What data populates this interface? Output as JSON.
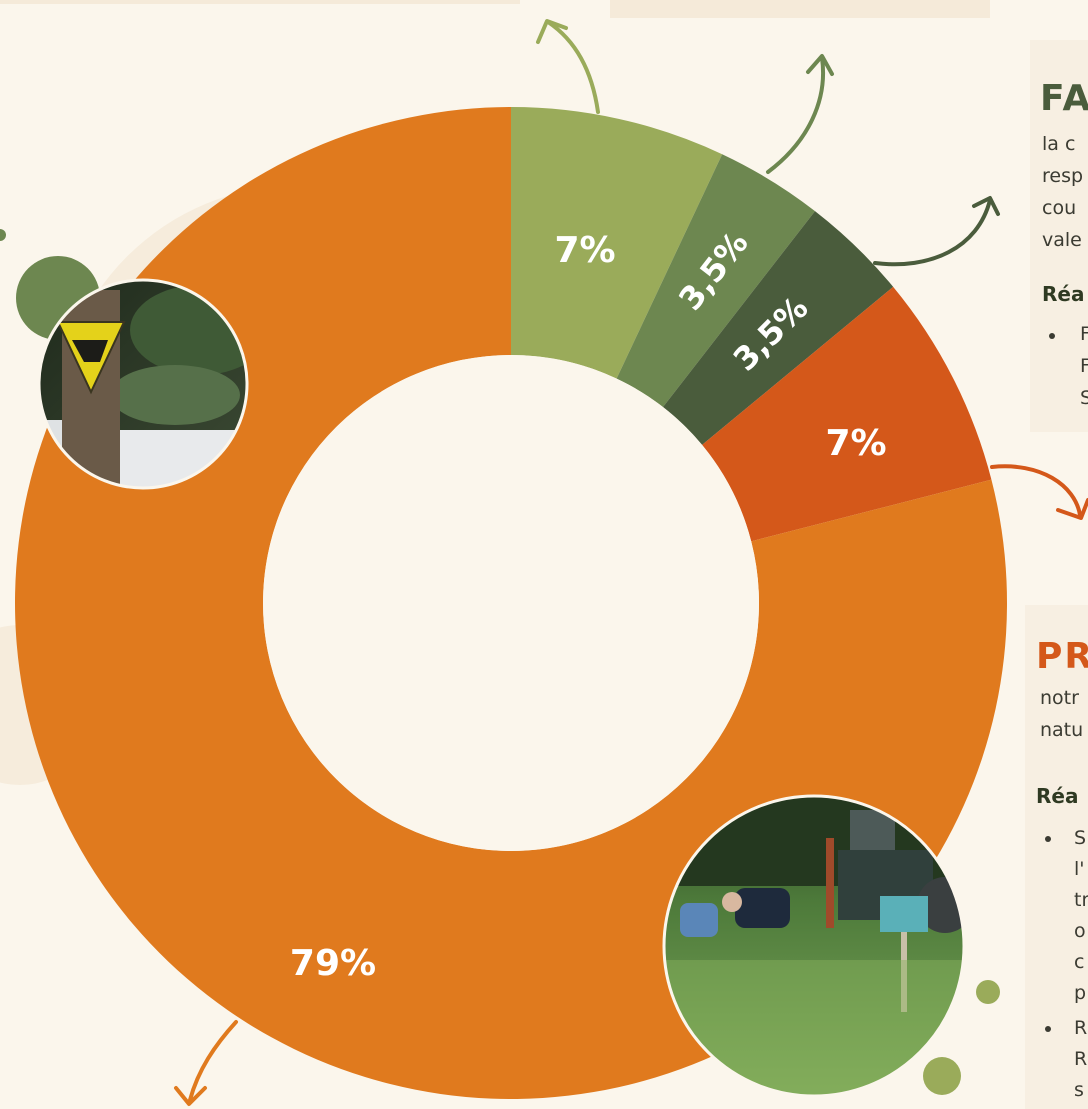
{
  "chart_data": {
    "type": "pie",
    "donut": true,
    "slices": [
      {
        "label": "7%",
        "value": 7,
        "color": "#9aab5a"
      },
      {
        "label": "3,5%",
        "value": 3.5,
        "color": "#6d8750"
      },
      {
        "label": "3,5%",
        "value": 3.5,
        "color": "#4a5c3c"
      },
      {
        "label": "7%",
        "value": 7,
        "color": "#d4581a"
      },
      {
        "label": "79%",
        "value": 79,
        "color": "#e07a1e"
      }
    ],
    "start_angle_deg": 0,
    "direction": "clockwise"
  },
  "cards": {
    "top": {
      "title": "FA",
      "title_color": "#4a5c3c",
      "lines": [
        "la c",
        "resp",
        "cou",
        "vale"
      ],
      "subtitle": "Réa",
      "bullet_lines": [
        "F",
        "F",
        "S"
      ]
    },
    "bottom": {
      "title": "PR",
      "title_color": "#d4581a",
      "lines": [
        "notr",
        "natu"
      ],
      "subtitle": "Réa",
      "bullet_lines": [
        "S",
        "l'",
        "tr",
        "o",
        "c",
        "p",
        "R",
        "R",
        "s"
      ]
    }
  },
  "colors": {
    "background": "#fbf6ec",
    "olive": "#9aab5a",
    "green": "#6d8750",
    "dark_green": "#4a5c3c",
    "red_orange": "#d4581a",
    "orange": "#e07a1e",
    "card": "#f7efe2"
  },
  "icons": [
    "hunting-sign-photo",
    "field-workers-photo",
    "arrow-icon",
    "bullet-dot-icon"
  ]
}
